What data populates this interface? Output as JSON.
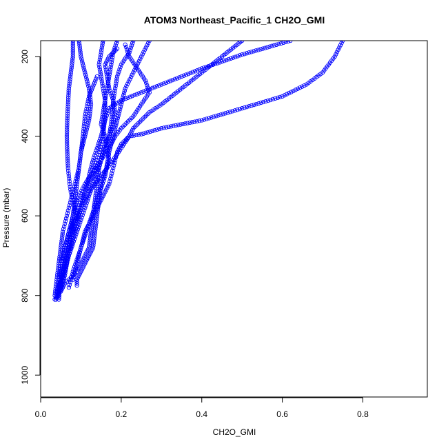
{
  "chart_data": {
    "type": "scatter",
    "title": "ATOM3 Northeast_Pacific_1 CH2O_GMI",
    "xlabel": "CH2O_GMI",
    "ylabel": "Pressure (mbar)",
    "xlim": [
      0,
      0.96
    ],
    "ylim": [
      1055,
      160
    ],
    "y_reversed": true,
    "x_ticks": [
      "0.0",
      "0.2",
      "0.4",
      "0.6",
      "0.8"
    ],
    "y_ticks": [
      "200",
      "400",
      "600",
      "800",
      "1000"
    ],
    "grid": false,
    "legend": "none",
    "color": "#0000ff",
    "marker": "open-circle",
    "series": [
      {
        "x": [
          0.08,
          0.08,
          0.075,
          0.07,
          0.068,
          0.066,
          0.065,
          0.066,
          0.068,
          0.07,
          0.072,
          0.075,
          0.08,
          0.085,
          0.09,
          0.08,
          0.07,
          0.065,
          0.06,
          0.055,
          0.05,
          0.048,
          0.046,
          0.045,
          0.045,
          0.046,
          0.045
        ],
        "y": [
          160,
          200,
          240,
          280,
          320,
          360,
          400,
          440,
          480,
          500,
          520,
          540,
          560,
          580,
          600,
          620,
          640,
          660,
          680,
          700,
          720,
          740,
          760,
          780,
          790,
          800,
          810
        ]
      },
      {
        "x": [
          0.155,
          0.15,
          0.145,
          0.15,
          0.155,
          0.16,
          0.16,
          0.158,
          0.155,
          0.15,
          0.145,
          0.14,
          0.135,
          0.13,
          0.12,
          0.11,
          0.1,
          0.095,
          0.09,
          0.085,
          0.08,
          0.075,
          0.07,
          0.065,
          0.06,
          0.055,
          0.05,
          0.045,
          0.04,
          0.035
        ],
        "y": [
          160,
          190,
          220,
          250,
          280,
          310,
          340,
          370,
          400,
          420,
          440,
          460,
          480,
          500,
          520,
          540,
          560,
          580,
          600,
          620,
          640,
          660,
          680,
          700,
          720,
          740,
          760,
          780,
          800,
          810
        ]
      },
      {
        "x": [
          0.21,
          0.22,
          0.24,
          0.26,
          0.27,
          0.25,
          0.23,
          0.2,
          0.185,
          0.17,
          0.15,
          0.13,
          0.11,
          0.09,
          0.08,
          0.07,
          0.06,
          0.055,
          0.05,
          0.045
        ],
        "y": [
          170,
          200,
          230,
          260,
          290,
          320,
          350,
          380,
          400,
          430,
          460,
          490,
          520,
          560,
          600,
          640,
          680,
          720,
          760,
          800
        ]
      },
      {
        "x": [
          0.5,
          0.45,
          0.4,
          0.35,
          0.3,
          0.27,
          0.25,
          0.23,
          0.22,
          0.2,
          0.18,
          0.15,
          0.12,
          0.1,
          0.085,
          0.075,
          0.065,
          0.055,
          0.05,
          0.045
        ],
        "y": [
          160,
          200,
          240,
          280,
          320,
          340,
          360,
          380,
          400,
          430,
          460,
          500,
          540,
          580,
          620,
          660,
          700,
          740,
          770,
          800
        ]
      },
      {
        "x": [
          0.75,
          0.73,
          0.7,
          0.66,
          0.6,
          0.5,
          0.4,
          0.3,
          0.25,
          0.22,
          0.2,
          0.19,
          0.185,
          0.18,
          0.175,
          0.17,
          0.16,
          0.15,
          0.14,
          0.13,
          0.12,
          0.11,
          0.1,
          0.09,
          0.08
        ],
        "y": [
          160,
          200,
          240,
          270,
          300,
          330,
          360,
          380,
          395,
          400,
          420,
          440,
          460,
          480,
          500,
          520,
          540,
          560,
          580,
          600,
          620,
          640,
          680,
          720,
          760
        ]
      },
      {
        "x": [
          0.19,
          0.18,
          0.175,
          0.17,
          0.165,
          0.16,
          0.155,
          0.15,
          0.16,
          0.165,
          0.17,
          0.16,
          0.15,
          0.145,
          0.14,
          0.135,
          0.13,
          0.12,
          0.11,
          0.1,
          0.095,
          0.09,
          0.09,
          0.09
        ],
        "y": [
          160,
          190,
          220,
          250,
          280,
          310,
          340,
          370,
          400,
          430,
          460,
          490,
          520,
          560,
          600,
          640,
          680,
          700,
          720,
          740,
          750,
          760,
          770,
          775
        ]
      },
      {
        "x": [
          0.62,
          0.5,
          0.4,
          0.3,
          0.2,
          0.17,
          0.16,
          0.15,
          0.14,
          0.13,
          0.12,
          0.11,
          0.1,
          0.09,
          0.08,
          0.07,
          0.06,
          0.05
        ],
        "y": [
          160,
          195,
          230,
          270,
          310,
          330,
          360,
          400,
          430,
          460,
          500,
          540,
          580,
          620,
          660,
          700,
          740,
          780
        ]
      },
      {
        "x": [
          0.095,
          0.1,
          0.11,
          0.12,
          0.125,
          0.12,
          0.11,
          0.1,
          0.095,
          0.09,
          0.085,
          0.08,
          0.075,
          0.07,
          0.065,
          0.06,
          0.055,
          0.05,
          0.045,
          0.04,
          0.035
        ],
        "y": [
          160,
          200,
          240,
          280,
          320,
          360,
          400,
          440,
          480,
          500,
          520,
          540,
          560,
          580,
          600,
          620,
          640,
          680,
          720,
          760,
          800
        ]
      },
      {
        "x": [
          0.27,
          0.25,
          0.23,
          0.21,
          0.2,
          0.19,
          0.18,
          0.17,
          0.165,
          0.16,
          0.15,
          0.14,
          0.13,
          0.12,
          0.11,
          0.1,
          0.09,
          0.08,
          0.075,
          0.07
        ],
        "y": [
          160,
          200,
          240,
          280,
          320,
          360,
          400,
          440,
          470,
          500,
          530,
          560,
          590,
          620,
          650,
          680,
          710,
          740,
          760,
          780
        ]
      },
      {
        "x": [
          0.23,
          0.22,
          0.2,
          0.19,
          0.185,
          0.18,
          0.178,
          0.175,
          0.17,
          0.16,
          0.15,
          0.14,
          0.13,
          0.12,
          0.11,
          0.1,
          0.09,
          0.08,
          0.07,
          0.06,
          0.05,
          0.04
        ],
        "y": [
          160,
          190,
          220,
          250,
          280,
          310,
          340,
          370,
          400,
          430,
          460,
          490,
          520,
          550,
          580,
          610,
          640,
          670,
          700,
          730,
          760,
          790
        ]
      },
      {
        "x": [
          0.19,
          0.17,
          0.16,
          0.165,
          0.17,
          0.18,
          0.185,
          0.18,
          0.17,
          0.16,
          0.155,
          0.15,
          0.145,
          0.14,
          0.135,
          0.13,
          0.125,
          0.12,
          0.11,
          0.1,
          0.09,
          0.08,
          0.07,
          0.06,
          0.055,
          0.05
        ],
        "y": [
          180,
          200,
          220,
          250,
          280,
          310,
          340,
          370,
          400,
          420,
          440,
          460,
          480,
          520,
          560,
          600,
          640,
          680,
          700,
          720,
          740,
          750,
          760,
          770,
          780,
          790
        ]
      },
      {
        "x": [
          0.14,
          0.12,
          0.11,
          0.105,
          0.1,
          0.095,
          0.09,
          0.085,
          0.08,
          0.075,
          0.07,
          0.065,
          0.06,
          0.055,
          0.05,
          0.045,
          0.04,
          0.038
        ],
        "y": [
          250,
          300,
          350,
          400,
          440,
          480,
          520,
          560,
          600,
          640,
          680,
          720,
          750,
          770,
          785,
          795,
          805,
          810
        ]
      }
    ]
  }
}
